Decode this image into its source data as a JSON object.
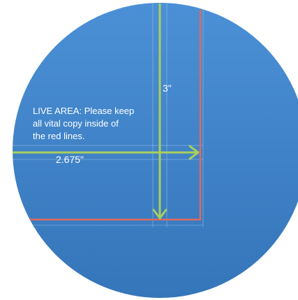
{
  "template": {
    "live_area_note": {
      "lines": [
        "LIVE AREA: Please keep",
        "all vital copy inside of",
        "the red lines."
      ]
    },
    "dimensions": {
      "height_label": "3\"",
      "width_label": "2.675\""
    }
  },
  "colors": {
    "circle_top": "#4b90d6",
    "circle_bottom": "#3575b9",
    "live_area_line": "#e06a5e",
    "guide_arrow": "#a8cf5c",
    "guide_thin": "#9ec3e6",
    "text": "#ffffff"
  }
}
